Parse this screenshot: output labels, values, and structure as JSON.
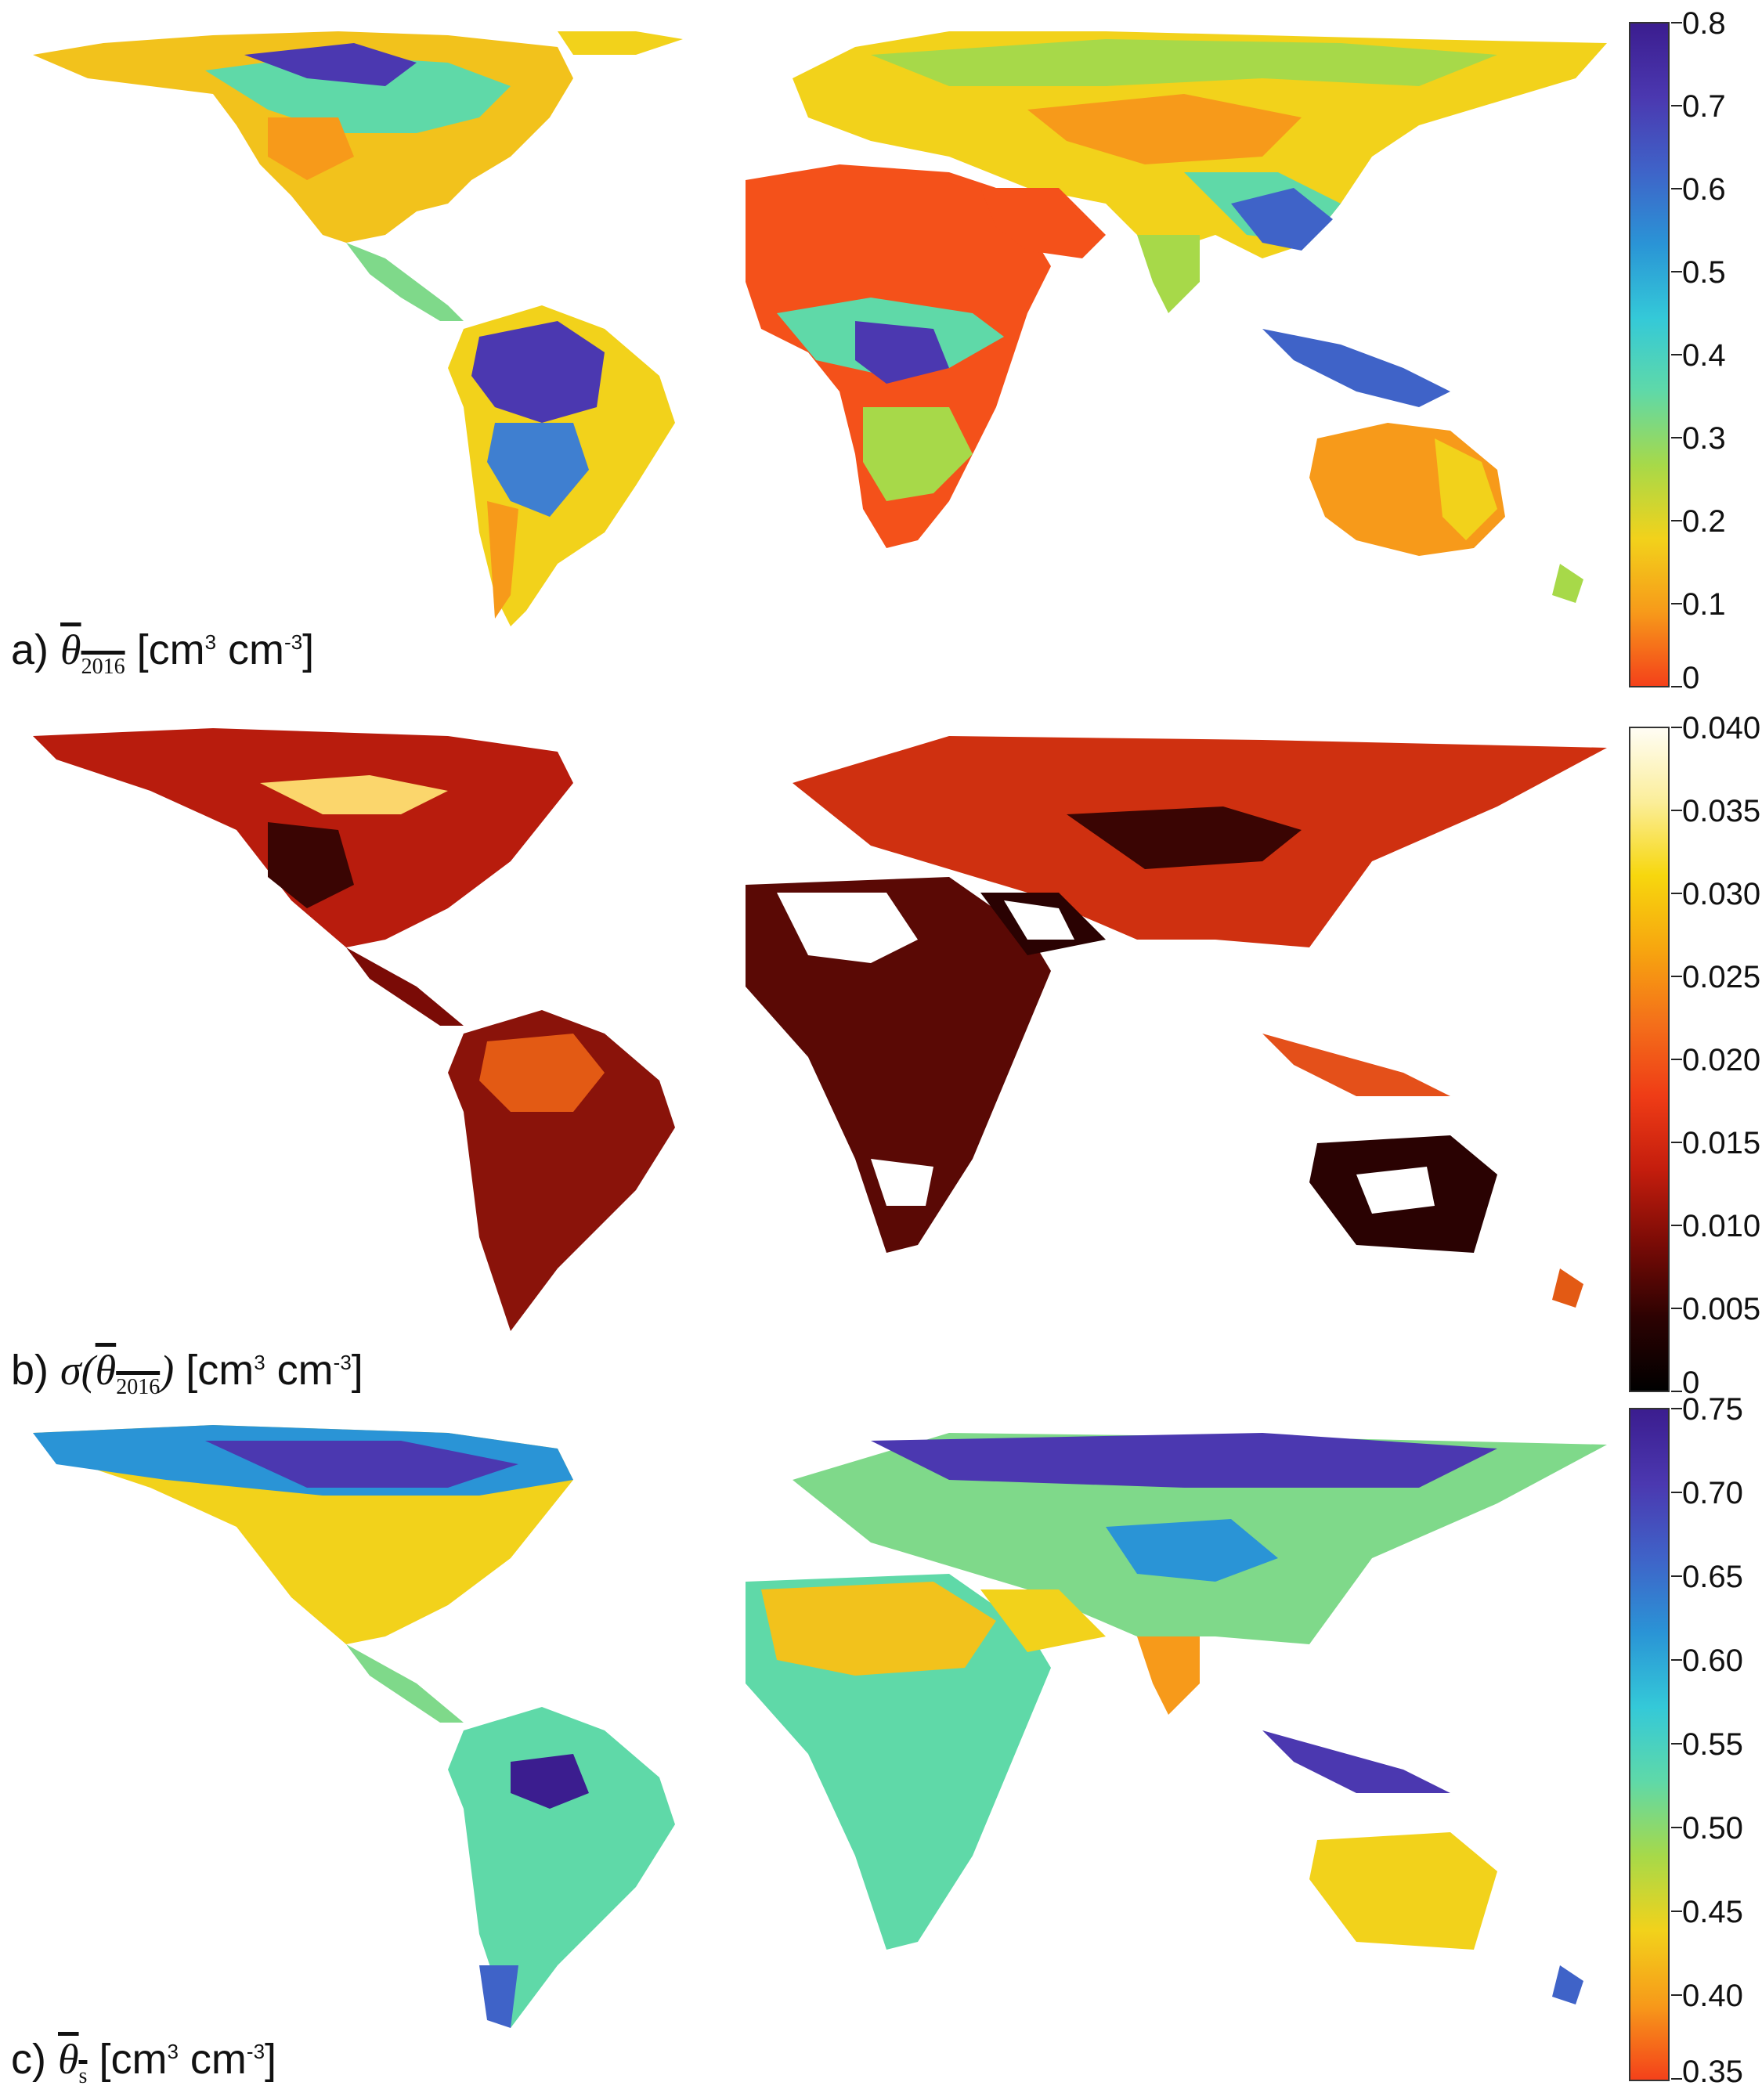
{
  "panels": [
    {
      "id": "a",
      "label_prefix": "a)",
      "symbol": "θ",
      "subscript": "2016",
      "unit_main": "[cm",
      "unit_sup1": "3",
      "unit_mid": " cm",
      "unit_sup2": "-3",
      "unit_end": "]",
      "colorbar": {
        "ticks": [
          "0.8",
          "0.7",
          "0.6",
          "0.5",
          "0.4",
          "0.3",
          "0.2",
          "0.1",
          "0"
        ],
        "colors_top_to_bottom": [
          "#3b1d8f",
          "#4b38b0",
          "#3f63c8",
          "#2a94d6",
          "#34c9d8",
          "#5fd9a8",
          "#a7d949",
          "#f2d21b",
          "#f79a1a",
          "#f4411a"
        ]
      }
    },
    {
      "id": "b",
      "label_prefix": "b)",
      "symbol_pre": "σ(",
      "symbol": "θ",
      "subscript": "2016",
      "symbol_post": ")",
      "unit_main": "[cm",
      "unit_sup1": "3",
      "unit_mid": " cm",
      "unit_sup2": "-3",
      "unit_end": "]",
      "colorbar": {
        "ticks": [
          "0.040",
          "0.035",
          "0.030",
          "0.025",
          "0.020",
          "0.015",
          "0.010",
          "0.005",
          "0"
        ],
        "colors_top_to_bottom": [
          "#fffdf4",
          "#fbee9a",
          "#f7d70e",
          "#f7a60f",
          "#f4701a",
          "#ef3c16",
          "#c41d0d",
          "#7a0b06",
          "#2d0202",
          "#000000"
        ]
      }
    },
    {
      "id": "c",
      "label_prefix": "c)",
      "symbol": "θ",
      "subscript": "s",
      "unit_main": "[cm",
      "unit_sup1": "3",
      "unit_mid": " cm",
      "unit_sup2": "-3",
      "unit_end": "]",
      "colorbar": {
        "ticks": [
          "0.75",
          "0.70",
          "0.65",
          "0.60",
          "0.55",
          "0.50",
          "0.45",
          "0.40",
          "0.35"
        ],
        "colors_top_to_bottom": [
          "#3b1d8f",
          "#4b38b0",
          "#3f63c8",
          "#2a94d6",
          "#34c9d8",
          "#5fd9a8",
          "#a7d949",
          "#f2d21b",
          "#f79a1a",
          "#f4411a"
        ]
      }
    }
  ]
}
